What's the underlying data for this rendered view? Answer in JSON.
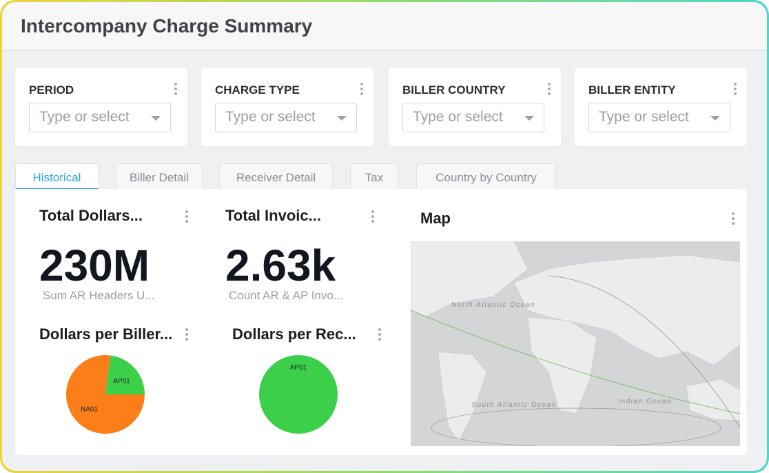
{
  "header": {
    "title": "Intercompany Charge Summary"
  },
  "filters": [
    {
      "label": "PERIOD",
      "placeholder": "Type or select"
    },
    {
      "label": "CHARGE TYPE",
      "placeholder": "Type or select"
    },
    {
      "label": "BILLER COUNTRY",
      "placeholder": "Type or select"
    },
    {
      "label": "BILLER ENTITY",
      "placeholder": "Type or select"
    }
  ],
  "tabs": [
    "Historical",
    "Biller Detail",
    "Receiver Detail",
    "Tax",
    "Country by Country"
  ],
  "kpis": [
    {
      "title": "Total Dollars...",
      "value": "230M",
      "subtitle": "Sum AR Headers U..."
    },
    {
      "title": "Total Invoic...",
      "value": "2.63k",
      "subtitle": "Count AR & AP Invo..."
    }
  ],
  "chart_data": [
    {
      "type": "pie",
      "title": "Dollars per Biller...",
      "categories": [
        "NA01",
        "AP01"
      ],
      "values": [
        77,
        23
      ],
      "colors": [
        "#fb7e18",
        "#3ccf4a"
      ]
    },
    {
      "type": "pie",
      "title": "Dollars per Rec...",
      "categories": [
        "AP01"
      ],
      "values": [
        100
      ],
      "colors": [
        "#3ccf4a"
      ]
    }
  ],
  "map": {
    "title": "Map",
    "labels": [
      "North Atlantic Ocean",
      "South Atlantic Ocean",
      "Indian Ocean"
    ]
  }
}
